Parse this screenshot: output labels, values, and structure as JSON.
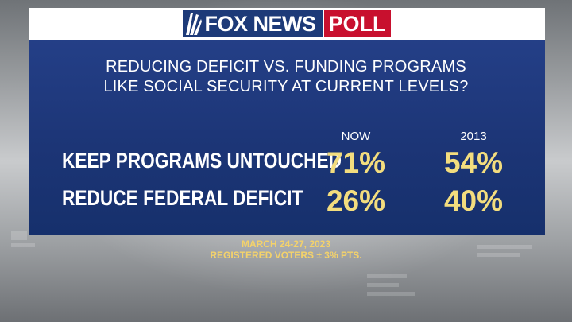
{
  "brand": {
    "fox_news": "FOX NEWS",
    "poll": "POLL",
    "colors": {
      "navy": "#1d3a78",
      "red": "#c8102e",
      "gold": "#f3dd7e"
    }
  },
  "question": {
    "line1": "REDUCING DEFICIT VS. FUNDING PROGRAMS",
    "line2": "LIKE SOCIAL SECURITY AT CURRENT LEVELS?"
  },
  "footer": {
    "date": "MARCH 24-27, 2023",
    "sample": "REGISTERED VOTERS ± 3% PTS."
  },
  "chart_data": {
    "type": "table",
    "columns": [
      "NOW",
      "2013"
    ],
    "rows": [
      {
        "label": "KEEP PROGRAMS UNTOUCHED",
        "values": [
          "71%",
          "54%"
        ]
      },
      {
        "label": "REDUCE FEDERAL DEFICIT",
        "values": [
          "26%",
          "40%"
        ]
      }
    ]
  }
}
